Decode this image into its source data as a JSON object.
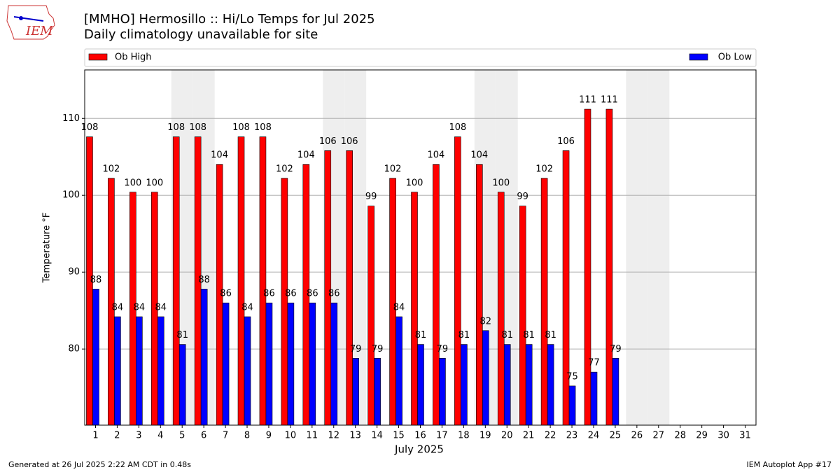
{
  "chart_data": {
    "type": "bar",
    "title": "[MMHO] Hermosillo :: Hi/Lo Temps for Jul 2025",
    "subtitle": "Daily climatology unavailable for site",
    "logo_text": "IEM",
    "x_label": "July 2025",
    "y_label": "Temperature °F",
    "footer_left": "Generated at 26 Jul 2025 2:22 AM CDT in 0.48s",
    "footer_right": "IEM Autoplot App #17",
    "categories": [
      "1",
      "2",
      "3",
      "4",
      "5",
      "6",
      "7",
      "8",
      "9",
      "10",
      "11",
      "12",
      "13",
      "14",
      "15",
      "16",
      "17",
      "18",
      "19",
      "20",
      "21",
      "22",
      "23",
      "24",
      "25",
      "26",
      "27",
      "28",
      "29",
      "30",
      "31"
    ],
    "weekend_shading": [
      "5",
      "6",
      "12",
      "13",
      "19",
      "20",
      "26",
      "27"
    ],
    "series": [
      {
        "name": "Ob High",
        "color": "#ff0000",
        "values": [
          107.6,
          102.2,
          100.4,
          100.4,
          107.6,
          107.6,
          104,
          107.6,
          107.6,
          102.2,
          104,
          105.8,
          105.8,
          98.6,
          102.2,
          100.4,
          104,
          107.6,
          104,
          100.4,
          98.6,
          102.2,
          105.8,
          111.2,
          111.2,
          null,
          null,
          null,
          null,
          null,
          null
        ],
        "value_labels": [
          "108",
          "102",
          "100",
          "100",
          "108",
          "108",
          "104",
          "108",
          "108",
          "102",
          "104",
          "106",
          "106",
          "99",
          "102",
          "100",
          "104",
          "108",
          "104",
          "100",
          "99",
          "102",
          "106",
          "111",
          "111",
          null,
          null,
          null,
          null,
          null,
          null
        ]
      },
      {
        "name": "Ob Low",
        "color": "#0000ff",
        "values": [
          87.8,
          84.2,
          84.2,
          84.2,
          80.6,
          87.8,
          86,
          84.2,
          86,
          86,
          86,
          86,
          78.8,
          78.8,
          84.2,
          80.6,
          78.8,
          80.6,
          82.4,
          80.6,
          80.6,
          80.6,
          75.2,
          77,
          78.8,
          null,
          null,
          null,
          null,
          null,
          null
        ],
        "value_labels": [
          "88",
          "84",
          "84",
          "84",
          "81",
          "88",
          "86",
          "84",
          "86",
          "86",
          "86",
          "86",
          "79",
          "79",
          "84",
          "81",
          "79",
          "81",
          "82",
          "81",
          "81",
          "81",
          "75",
          "77",
          "79",
          null,
          null,
          null,
          null,
          null,
          null
        ]
      }
    ],
    "ylim": [
      70.1,
      116.3
    ],
    "yticks": [
      80,
      90,
      100,
      110
    ],
    "grid": true
  }
}
